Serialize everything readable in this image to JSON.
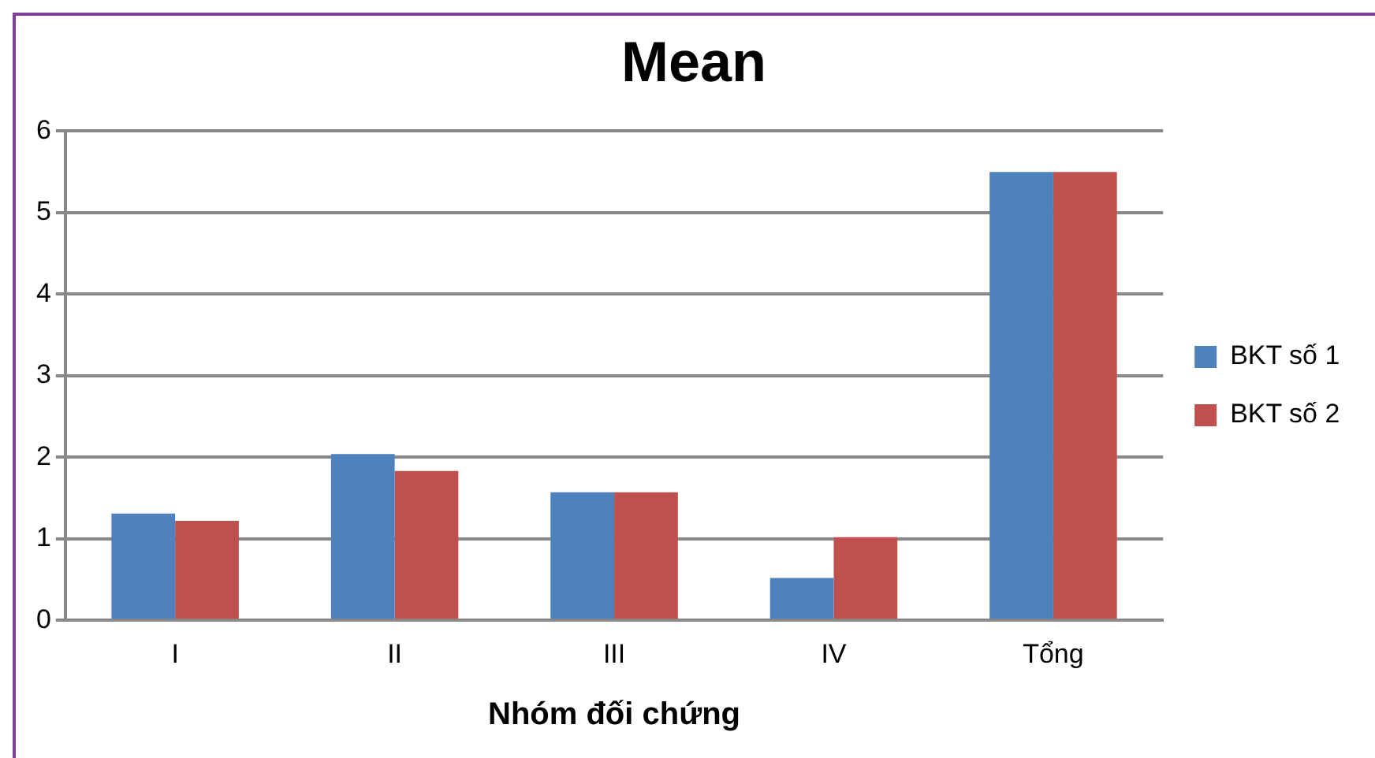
{
  "chart_data": {
    "type": "bar",
    "title": "Mean",
    "xlabel": "Nhóm đối chứng",
    "categories": [
      "I",
      "II",
      "III",
      "IV",
      "Tổng"
    ],
    "series": [
      {
        "name": "BKT số 1",
        "color": "#4f81bd",
        "values": [
          1.31,
          2.04,
          1.57,
          0.52,
          5.5
        ]
      },
      {
        "name": "BKT số 2",
        "color": "#c0504d",
        "values": [
          1.22,
          1.83,
          1.57,
          1.02,
          5.5
        ]
      }
    ],
    "ylim": [
      0,
      6
    ],
    "yticks": [
      0,
      1,
      2,
      3,
      4,
      5,
      6
    ],
    "grid": "y",
    "legend": "right"
  }
}
